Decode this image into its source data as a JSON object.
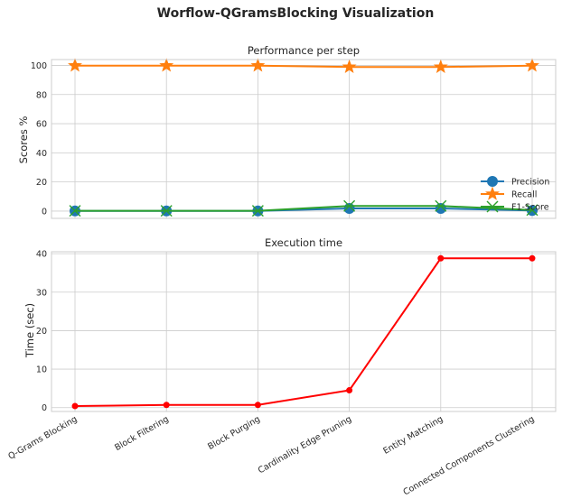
{
  "figure": {
    "title": "Worflow-QGramsBlocking Visualization"
  },
  "chart_data": [
    {
      "type": "line",
      "title": "Performance per step",
      "xlabel": "",
      "ylabel": "Scores %",
      "categories": [
        "Q-Grams Blocking",
        "Block Filtering",
        "Block Purging",
        "Cardinality Edge Pruning",
        "Entity Matching",
        "Connected Components Clustering"
      ],
      "ylim": [
        -5,
        104
      ],
      "yticks": [
        0,
        20,
        40,
        60,
        80,
        100
      ],
      "grid": true,
      "legend_position": "lower-right",
      "series": [
        {
          "name": "Precision",
          "marker": "circle",
          "color": "#1f77b4",
          "values": [
            0.1,
            0.1,
            0.1,
            1.8,
            1.8,
            0.4
          ]
        },
        {
          "name": "Recall",
          "marker": "star",
          "color": "#ff7f0e",
          "values": [
            99.8,
            99.8,
            99.8,
            98.9,
            98.9,
            99.8
          ]
        },
        {
          "name": "F1-Score",
          "marker": "x",
          "color": "#2ca02c",
          "values": [
            0.2,
            0.2,
            0.2,
            3.5,
            3.5,
            0.7
          ]
        }
      ]
    },
    {
      "type": "line",
      "title": "Execution time",
      "xlabel": "",
      "ylabel": "Time (sec)",
      "categories": [
        "Q-Grams Blocking",
        "Block Filtering",
        "Block Purging",
        "Cardinality Edge Pruning",
        "Entity Matching",
        "Connected Components Clustering"
      ],
      "ylim": [
        -1,
        40.5
      ],
      "yticks": [
        0,
        10,
        20,
        30,
        40
      ],
      "grid": true,
      "series": [
        {
          "marker": "circle",
          "color": "#ff0000",
          "values": [
            0.4,
            0.7,
            0.7,
            4.5,
            38.8,
            38.8
          ]
        }
      ]
    }
  ]
}
